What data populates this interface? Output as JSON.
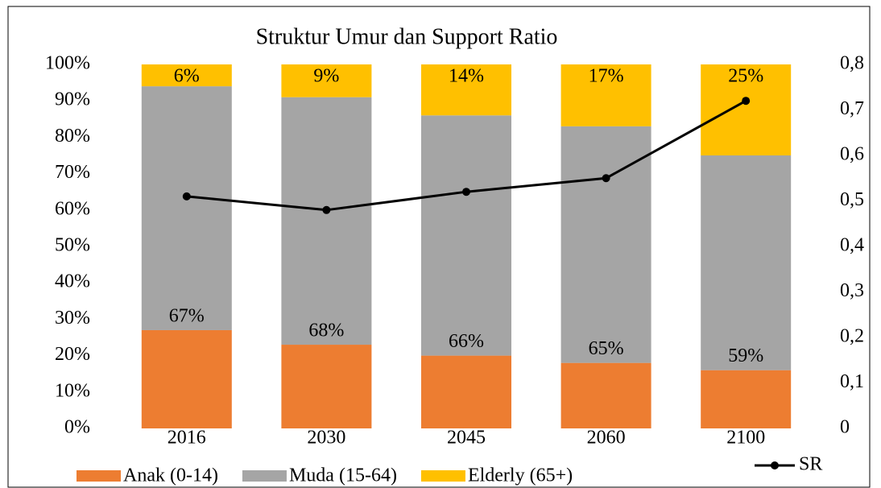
{
  "chart_data": {
    "type": "stacked_bar_line",
    "title": "Struktur Umur dan Support Ratio",
    "categories": [
      "2016",
      "2030",
      "2045",
      "2060",
      "2100"
    ],
    "series": [
      {
        "name": "Anak (0-14)",
        "color": "#ED7D31",
        "values": [
          27,
          23,
          20,
          18,
          16
        ]
      },
      {
        "name": "Muda  (15-64)",
        "color": "#A5A5A5",
        "values": [
          67,
          68,
          66,
          65,
          59
        ],
        "value_labels": [
          "67%",
          "68%",
          "66%",
          "65%",
          "59%"
        ]
      },
      {
        "name": "Elderly (65+)",
        "color": "#FFC000",
        "values": [
          6,
          9,
          14,
          17,
          25
        ],
        "value_labels": [
          "6%",
          "9%",
          "14%",
          "17%",
          "25%"
        ]
      },
      {
        "name": "SR",
        "color": "#000000",
        "axis": "y2",
        "type": "line",
        "values": [
          0.51,
          0.48,
          0.52,
          0.55,
          0.72
        ]
      }
    ],
    "ylim": [
      0,
      100
    ],
    "yticks": [
      {
        "value": 0,
        "label": "0%"
      },
      {
        "value": 10,
        "label": "10%"
      },
      {
        "value": 20,
        "label": "20%"
      },
      {
        "value": 30,
        "label": "30%"
      },
      {
        "value": 40,
        "label": "40%"
      },
      {
        "value": 50,
        "label": "50%"
      },
      {
        "value": 60,
        "label": "60%"
      },
      {
        "value": 70,
        "label": "70%"
      },
      {
        "value": 80,
        "label": "80%"
      },
      {
        "value": 90,
        "label": "90%"
      },
      {
        "value": 100,
        "label": "100%"
      }
    ],
    "y2lim": [
      0,
      0.8
    ],
    "y2ticks": [
      0,
      {
        "value": 0.1,
        "label": "0,1"
      },
      {
        "value": 0.2,
        "label": "0,2"
      },
      {
        "value": 0.3,
        "label": "0,3"
      },
      {
        "value": 0.4,
        "label": "0,4"
      },
      {
        "value": 0.5,
        "label": "0,5"
      },
      {
        "value": 0.6,
        "label": "0,6"
      },
      {
        "value": 0.7,
        "label": "0,7"
      },
      {
        "value": 0.8,
        "label": "0,8"
      }
    ],
    "legend": "bottom"
  }
}
